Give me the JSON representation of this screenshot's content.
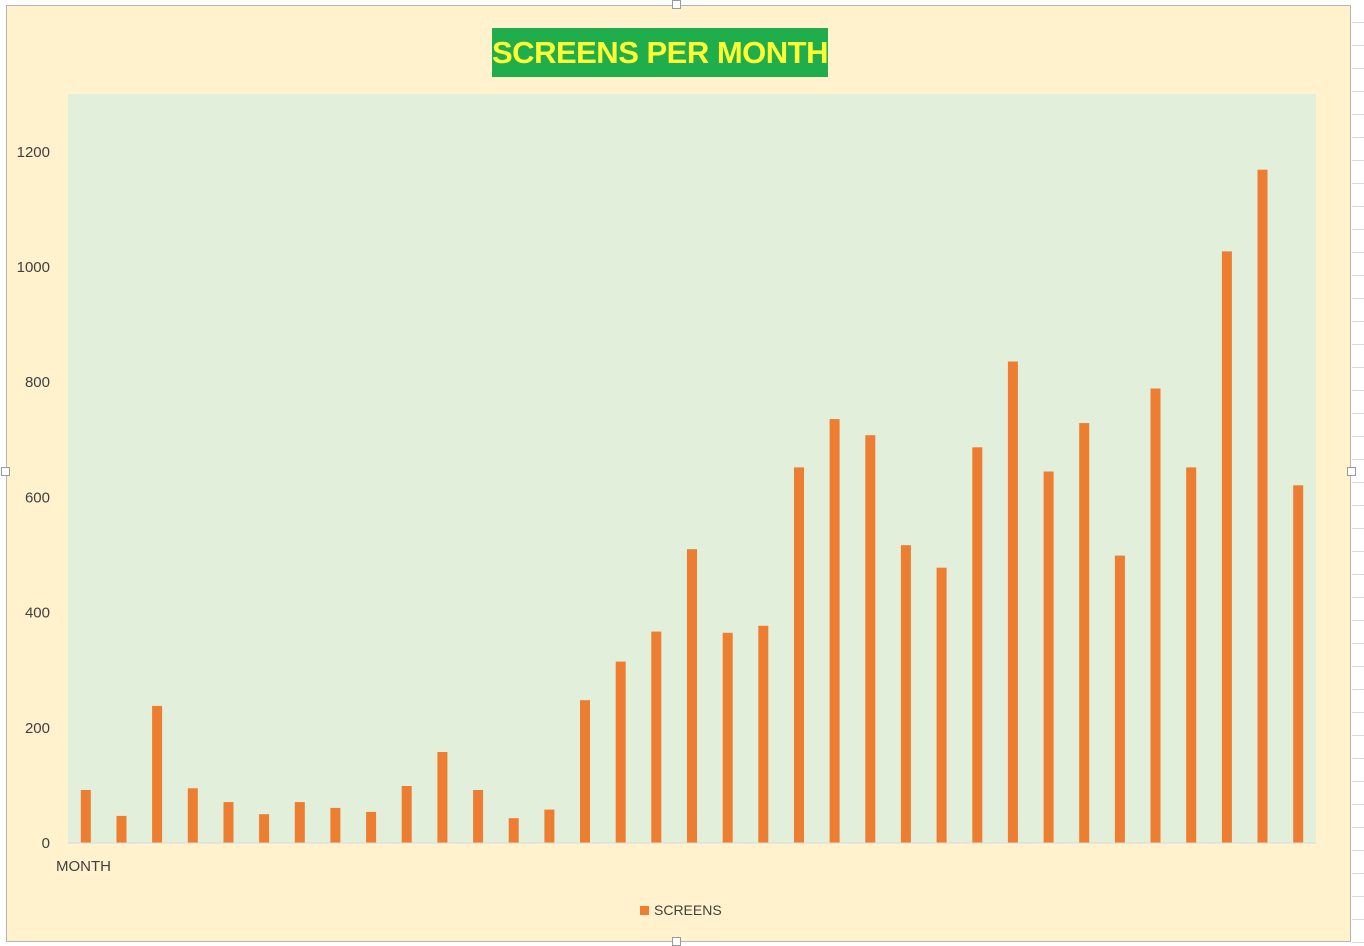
{
  "chart_data": {
    "type": "bar",
    "title": "SCREENS PER MONTH",
    "xlabel": "MONTH",
    "ylabel": "",
    "ylim": [
      0,
      1300
    ],
    "yticks": [
      0,
      200,
      400,
      600,
      800,
      1000,
      1200
    ],
    "grid": false,
    "legend": "bottom",
    "series": [
      {
        "name": "SCREENS",
        "color": "#ed7d31",
        "values": [
          92,
          47,
          238,
          95,
          71,
          50,
          71,
          61,
          54,
          99,
          158,
          92,
          43,
          58,
          248,
          315,
          367,
          510,
          365,
          377,
          652,
          736,
          708,
          517,
          478,
          687,
          836,
          645,
          729,
          499,
          789,
          652,
          1027,
          1169,
          621
        ]
      }
    ]
  },
  "colors": {
    "chart_area": "#fff2cc",
    "plot_area": "#e2efda",
    "bar": "#ed7d31",
    "title_bg": "#1fae4b",
    "title_text": "#ffff33"
  }
}
